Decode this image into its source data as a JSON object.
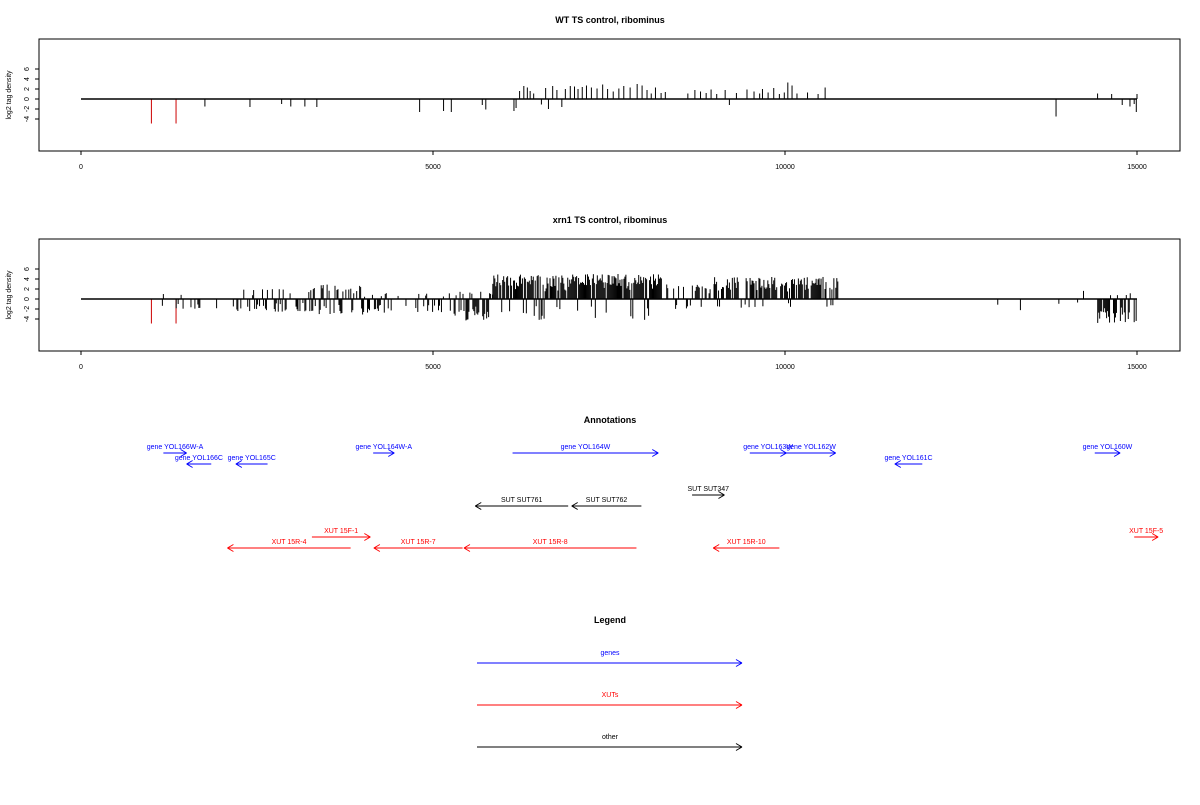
{
  "chart_data": [
    {
      "type": "bar",
      "title": "WT TS control, ribominus",
      "xlabel": "",
      "ylabel": "log2 tag density",
      "xlim": [
        0,
        15000
      ],
      "ylim": [
        -5,
        6
      ],
      "xticks": [
        0,
        5000,
        10000,
        15000
      ],
      "yticks": [
        -4,
        -2,
        0,
        2,
        4,
        6
      ],
      "xtick_labels": [
        "0",
        "5000",
        "10000",
        "15000"
      ],
      "ytick_labels": [
        "-4",
        "-2",
        "0",
        "2",
        "4",
        "6"
      ],
      "series": [
        {
          "color": "#cc0000",
          "x": [
            1000,
            1350
          ],
          "values": [
            -4.9,
            -4.9
          ]
        },
        {
          "color": "#000000",
          "x": [
            1760,
            2400,
            2850,
            2980,
            3180,
            3350,
            4810,
            5150,
            5260,
            5700,
            5750,
            6150,
            6180,
            6230,
            6290,
            6340,
            6380,
            6430,
            6540,
            6600,
            6640,
            6700,
            6760,
            6830,
            6880,
            6950,
            7010,
            7060,
            7120,
            7180,
            7250,
            7330,
            7410,
            7480,
            7560,
            7640,
            7710,
            7800,
            7900,
            7970,
            8040,
            8100,
            8160,
            8240,
            8300,
            8620,
            8720,
            8800,
            8880,
            8950,
            9030,
            9150,
            9210,
            9310,
            9460,
            9560,
            9640,
            9680,
            9760,
            9840,
            9920,
            9990,
            10040,
            10100,
            10170,
            10320,
            10470,
            10570,
            13850,
            14440,
            14640,
            14790,
            14900,
            14960,
            14990,
            15000
          ],
          "values": [
            -1.5,
            -1.6,
            -1.0,
            -1.5,
            -1.5,
            -1.6,
            -2.6,
            -2.4,
            -2.6,
            -1.2,
            -2.1,
            -2.4,
            -1.8,
            1.6,
            2.6,
            2.3,
            1.6,
            1.1,
            -1.1,
            2.2,
            -2.0,
            2.6,
            1.8,
            -1.6,
            2.0,
            2.6,
            2.5,
            2.0,
            2.4,
            2.7,
            2.3,
            2.1,
            2.9,
            2.0,
            1.5,
            2.1,
            2.6,
            2.3,
            3.0,
            2.7,
            1.8,
            1.1,
            2.3,
            1.2,
            1.4,
            1.1,
            1.8,
            1.5,
            1.2,
            1.9,
            1.0,
            1.8,
            -1.2,
            1.2,
            1.9,
            1.5,
            1.1,
            2.0,
            1.3,
            2.2,
            1.0,
            1.3,
            3.3,
            2.7,
            1.1,
            1.3,
            1.0,
            2.3,
            -3.5,
            1.1,
            1.0,
            -1.2,
            -1.5,
            -1.0,
            -2.6,
            1.0
          ]
        }
      ]
    },
    {
      "type": "bar",
      "title": "xrn1 TS control, ribominus",
      "xlabel": "",
      "ylabel": "log2 tag density",
      "xlim": [
        0,
        15000
      ],
      "ylim": [
        -5,
        6
      ],
      "xticks": [
        0,
        5000,
        10000,
        15000
      ],
      "yticks": [
        -4,
        -2,
        0,
        2,
        4,
        6
      ],
      "xtick_labels": [
        "0",
        "5000",
        "10000",
        "15000"
      ],
      "ytick_labels": [
        "-4",
        "-2",
        "0",
        "2",
        "4",
        "6"
      ],
      "series": [
        {
          "color": "#cc0000",
          "x": [
            1000,
            1350
          ],
          "values": [
            -4.9,
            -4.9
          ]
        },
        {
          "color": "#000000",
          "generated": {
            "seed": 7,
            "step": 14,
            "regions": [
              {
                "from": 1100,
                "to": 2200,
                "density": 0.18,
                "pos_max": 1.0,
                "neg_max": 2.0,
                "pos_prob": 0.15
              },
              {
                "from": 2200,
                "to": 3300,
                "density": 0.45,
                "pos_max": 2.0,
                "neg_max": 2.6,
                "pos_prob": 0.3
              },
              {
                "from": 3300,
                "to": 4000,
                "density": 0.55,
                "pos_max": 3.0,
                "neg_max": 3.2,
                "pos_prob": 0.5
              },
              {
                "from": 4000,
                "to": 5300,
                "density": 0.4,
                "pos_max": 1.2,
                "neg_max": 2.8,
                "pos_prob": 0.25
              },
              {
                "from": 5300,
                "to": 5850,
                "density": 0.75,
                "pos_max": 1.5,
                "neg_max": 4.3,
                "pos_prob": 0.2
              },
              {
                "from": 5850,
                "to": 8250,
                "density": 0.97,
                "pos_max": 5.0,
                "neg_max": 4.3,
                "pos_prob": 0.85
              },
              {
                "from": 8250,
                "to": 9000,
                "density": 0.45,
                "pos_max": 3.0,
                "neg_max": 2.0,
                "pos_prob": 0.7
              },
              {
                "from": 9000,
                "to": 10750,
                "density": 0.8,
                "pos_max": 4.5,
                "neg_max": 1.8,
                "pos_prob": 0.85
              },
              {
                "from": 12700,
                "to": 13400,
                "density": 0.08,
                "pos_max": 0.5,
                "neg_max": 2.4,
                "pos_prob": 0.0
              },
              {
                "from": 13750,
                "to": 14300,
                "density": 0.1,
                "pos_max": 2.3,
                "neg_max": 1.0,
                "pos_prob": 0.7
              },
              {
                "from": 14400,
                "to": 15000,
                "density": 0.6,
                "pos_max": 1.2,
                "neg_max": 4.8,
                "pos_prob": 0.15
              }
            ]
          }
        }
      ]
    }
  ],
  "annotations": {
    "title": "Annotations",
    "items": [
      {
        "label": "gene YOL166W-A",
        "start": 1170,
        "end": 1500,
        "row": 0,
        "kind": "gene",
        "dir": "right"
      },
      {
        "label": "gene YOL166C",
        "start": 1500,
        "end": 1850,
        "row": 1,
        "kind": "gene",
        "dir": "left"
      },
      {
        "label": "gene YOL165C",
        "start": 2200,
        "end": 2650,
        "row": 1,
        "kind": "gene",
        "dir": "left"
      },
      {
        "label": "gene YOL164W-A",
        "start": 4150,
        "end": 4450,
        "row": 0,
        "kind": "gene",
        "dir": "right"
      },
      {
        "label": "gene YOL164W",
        "start": 6130,
        "end": 8200,
        "row": 0,
        "kind": "gene",
        "dir": "right"
      },
      {
        "label": "gene YOL163W",
        "start": 9500,
        "end": 10020,
        "row": 0,
        "kind": "gene",
        "dir": "right"
      },
      {
        "label": "gene YOL162W",
        "start": 10020,
        "end": 10720,
        "row": 0,
        "kind": "gene",
        "dir": "right"
      },
      {
        "label": "gene YOL161C",
        "start": 11560,
        "end": 11950,
        "row": 1,
        "kind": "gene",
        "dir": "left"
      },
      {
        "label": "gene YOL160W",
        "start": 14400,
        "end": 14760,
        "row": 0,
        "kind": "gene",
        "dir": "right"
      },
      {
        "label": "SUT SUT761",
        "start": 5600,
        "end": 6920,
        "row": 3,
        "kind": "other",
        "dir": "left"
      },
      {
        "label": "SUT SUT762",
        "start": 6970,
        "end": 7960,
        "row": 3,
        "kind": "other",
        "dir": "left"
      },
      {
        "label": "SUT SUT347",
        "start": 8680,
        "end": 9140,
        "row": 2,
        "kind": "other",
        "dir": "right"
      },
      {
        "label": "XUT 15F-1",
        "start": 3280,
        "end": 4110,
        "row": 4,
        "kind": "xut",
        "dir": "right"
      },
      {
        "label": "XUT 15R-4",
        "start": 2080,
        "end": 3830,
        "row": 5,
        "kind": "xut",
        "dir": "left"
      },
      {
        "label": "XUT 15R-7",
        "start": 4160,
        "end": 5420,
        "row": 5,
        "kind": "xut",
        "dir": "left"
      },
      {
        "label": "XUT 15R-8",
        "start": 5440,
        "end": 7890,
        "row": 5,
        "kind": "xut",
        "dir": "left"
      },
      {
        "label": "XUT 15R-10",
        "start": 8980,
        "end": 9920,
        "row": 5,
        "kind": "xut",
        "dir": "left"
      },
      {
        "label": "XUT 15F-5",
        "start": 14960,
        "end": 15300,
        "row": 4,
        "kind": "xut",
        "dir": "right"
      }
    ]
  },
  "legend": {
    "title": "Legend",
    "entries": [
      {
        "label": "genes",
        "kind": "gene"
      },
      {
        "label": "XUTs",
        "kind": "xut"
      },
      {
        "label": "other",
        "kind": "other"
      }
    ]
  },
  "colors": {
    "gene": "#0000ff",
    "xut": "#ff0000",
    "other": "#000000",
    "axis": "#000000",
    "highlight": "#cc0000"
  }
}
